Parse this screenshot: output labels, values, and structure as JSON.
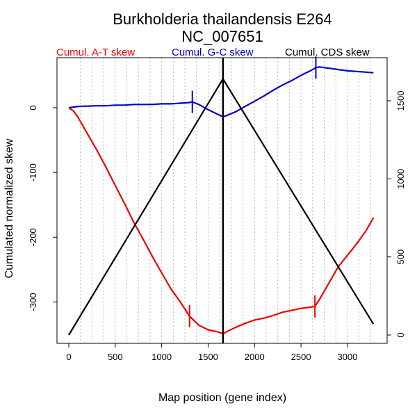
{
  "chart_data": {
    "type": "line",
    "title": "Burkholderia thailandensis E264",
    "subtitle": "NC_007651",
    "xlabel": "Map position (gene index)",
    "ylabel": "Cumulated normalized skew",
    "xlim": [
      0,
      3300
    ],
    "ylim_left": [
      -350,
      65
    ],
    "ylim_right": [
      0,
      1700
    ],
    "x_ticks": [
      0,
      500,
      1000,
      1500,
      2000,
      2500,
      3000
    ],
    "y_left_ticks": [
      0,
      -100,
      -200,
      -300
    ],
    "y_right_ticks": [
      0,
      500,
      1000,
      1500
    ],
    "grid": "vertical dotted",
    "legend": [
      "Cumul. A-T skew",
      "Cumul. G-C skew",
      "Cumul. CDS skew"
    ],
    "colors": {
      "at": "#ee0000",
      "gc": "#0000cc",
      "cds": "#000000"
    },
    "series": [
      {
        "name": "Cumul. A-T skew",
        "axis": "left",
        "x": [
          0,
          50,
          100,
          200,
          300,
          400,
          500,
          600,
          700,
          800,
          900,
          1000,
          1100,
          1200,
          1300,
          1400,
          1500,
          1600,
          1660,
          1700,
          1800,
          1900,
          2000,
          2100,
          2200,
          2300,
          2400,
          2500,
          2600,
          2650,
          2700,
          2800,
          2900,
          3000,
          3100,
          3200,
          3280
        ],
        "y": [
          0,
          -5,
          -15,
          -40,
          -65,
          -92,
          -120,
          -148,
          -177,
          -203,
          -230,
          -255,
          -280,
          -300,
          -322,
          -336,
          -343,
          -346,
          -349,
          -346,
          -339,
          -333,
          -328,
          -325,
          -321,
          -316,
          -313,
          -310,
          -308,
          -307,
          -296,
          -271,
          -246,
          -228,
          -210,
          -190,
          -170
        ]
      },
      {
        "name": "Cumul. G-C skew",
        "axis": "left",
        "x": [
          0,
          100,
          200,
          300,
          400,
          500,
          600,
          700,
          800,
          900,
          1000,
          1100,
          1200,
          1300,
          1330,
          1400,
          1500,
          1600,
          1660,
          1700,
          1800,
          1900,
          2000,
          2100,
          2200,
          2300,
          2400,
          2500,
          2600,
          2660,
          2700,
          2800,
          2900,
          3000,
          3100,
          3200,
          3280
        ],
        "y": [
          0,
          2,
          2.5,
          3,
          3,
          4,
          4,
          5,
          5,
          5,
          6,
          6,
          7,
          8,
          9,
          5,
          -3,
          -10,
          -14,
          -12,
          -6,
          2,
          10,
          18,
          27,
          35,
          42,
          50,
          57,
          62,
          63,
          61,
          59,
          57,
          56,
          55,
          54
        ]
      },
      {
        "name": "Cumul. CDS skew",
        "axis": "right",
        "x": [
          0,
          1660,
          3280
        ],
        "y": [
          0,
          1640,
          70
        ]
      }
    ],
    "markers": [
      {
        "series": "Cumul. A-T skew",
        "x": 1300,
        "y": -322
      },
      {
        "series": "Cumul. A-T skew",
        "x": 2650,
        "y": -307
      },
      {
        "series": "Cumul. G-C skew",
        "x": 1330,
        "y": 9
      },
      {
        "series": "Cumul. G-C skew",
        "x": 2660,
        "y": 62
      }
    ],
    "vline_x": 1660
  }
}
